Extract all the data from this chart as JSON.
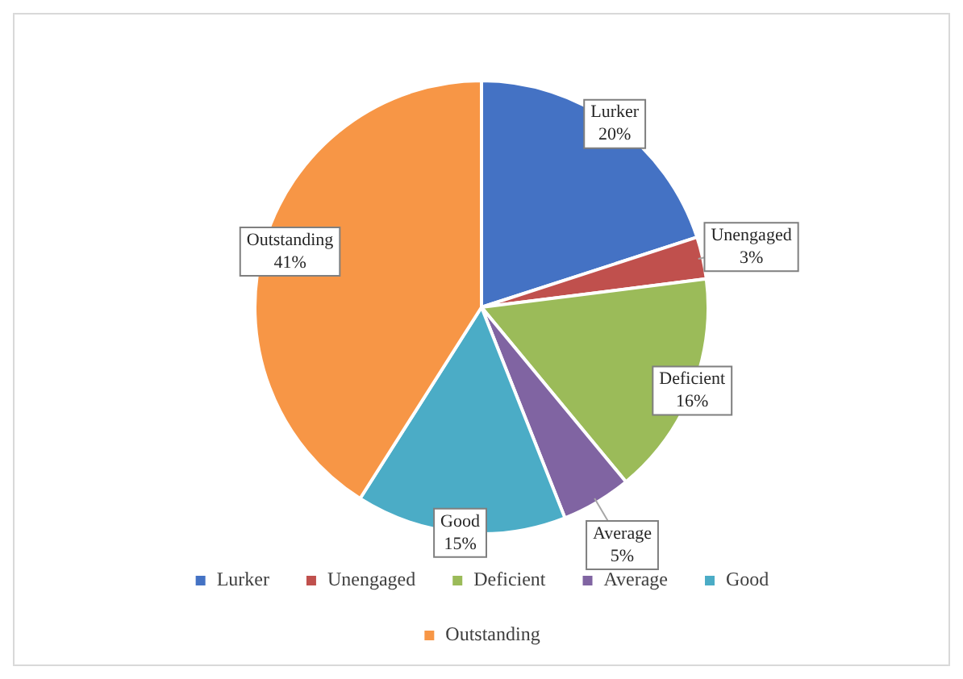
{
  "chart_data": {
    "type": "pie",
    "categories": [
      "Lurker",
      "Unengaged",
      "Deficient",
      "Average",
      "Good",
      "Outstanding"
    ],
    "values": [
      20,
      3,
      16,
      5,
      15,
      41
    ],
    "value_labels": [
      "20%",
      "3%",
      "16%",
      "5%",
      "15%",
      "41%"
    ],
    "colors": [
      "#4472c4",
      "#c0504d",
      "#9bbb59",
      "#8064a2",
      "#4bacc6",
      "#f79646"
    ],
    "data_labels": true,
    "legend": "bottom"
  }
}
